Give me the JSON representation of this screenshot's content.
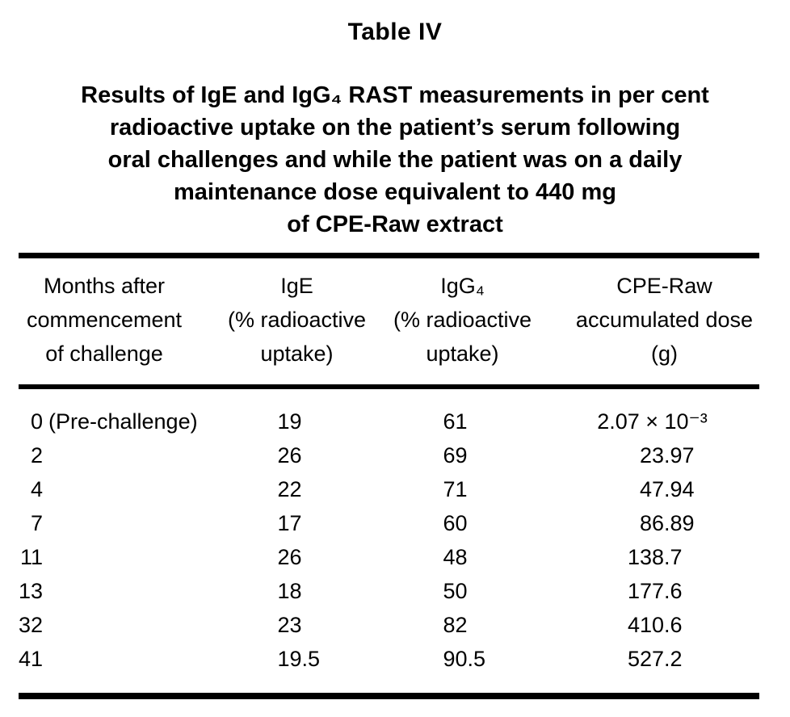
{
  "title": "Table IV",
  "caption": "Results of IgE and IgG₄ RAST measurements in per cent\nradioactive uptake on the patient’s serum following\noral challenges and while the patient was on a daily\nmaintenance dose equivalent to 440 mg\nof CPE-Raw extract",
  "table": {
    "columns": [
      "Months after\ncommencement\nof challenge",
      "IgE\n(% radioactive\nuptake)",
      "IgG₄\n(% radioactive\nuptake)",
      "CPE-Raw\naccumulated dose\n(g)"
    ],
    "rows": [
      {
        "month": "0",
        "note": "(Pre-challenge)",
        "ige": "19",
        "igg4": "61",
        "dose": "2.07 × 10⁻³"
      },
      {
        "month": "2",
        "note": "",
        "ige": "26",
        "igg4": "69",
        "dose": "23.97"
      },
      {
        "month": "4",
        "note": "",
        "ige": "22",
        "igg4": "71",
        "dose": "47.94"
      },
      {
        "month": "7",
        "note": "",
        "ige": "17",
        "igg4": "60",
        "dose": "86.89"
      },
      {
        "month": "11",
        "note": "",
        "ige": "26",
        "igg4": "48",
        "dose": "138.7"
      },
      {
        "month": "13",
        "note": "",
        "ige": "18",
        "igg4": "50",
        "dose": "177.6"
      },
      {
        "month": "32",
        "note": "",
        "ige": "23",
        "igg4": "82",
        "dose": "410.6"
      },
      {
        "month": "41",
        "note": "",
        "ige": "19.5",
        "igg4": "90.5",
        "dose": "527.2"
      }
    ]
  }
}
